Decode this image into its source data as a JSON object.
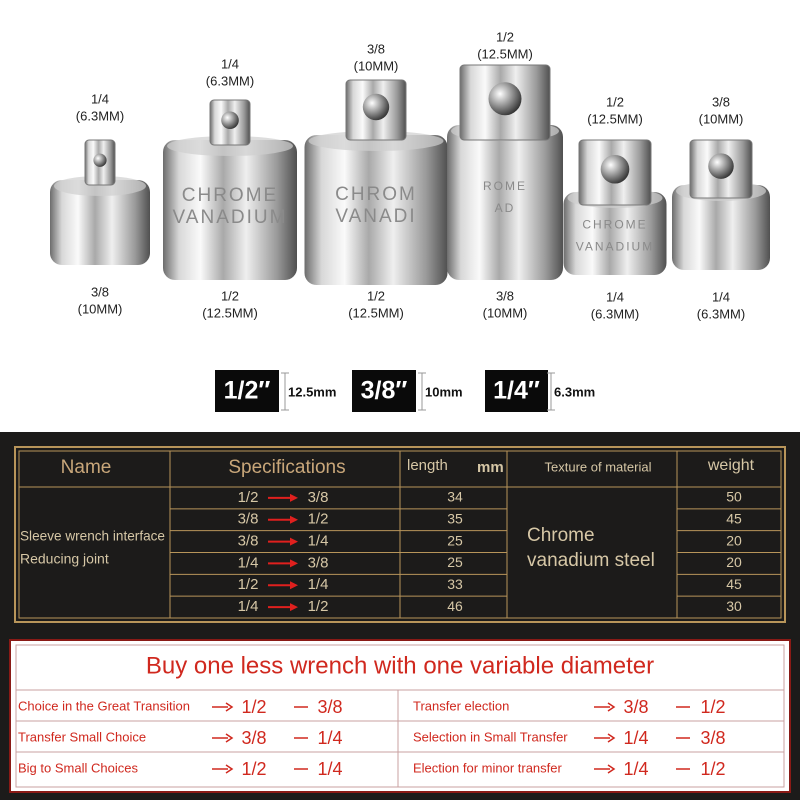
{
  "adapters": [
    {
      "top": [
        "1/4",
        "(6.3MM)"
      ],
      "bottom": [
        "3/8",
        "(10MM)"
      ],
      "engraving": []
    },
    {
      "top": [
        "1/4",
        "(6.3MM)"
      ],
      "bottom": [
        "1/2",
        "(12.5MM)"
      ],
      "engraving": [
        "CHROME",
        "VANADIUM"
      ]
    },
    {
      "top": [
        "3/8",
        "(10MM)"
      ],
      "bottom": [
        "1/2",
        "(12.5MM)"
      ],
      "engraving": [
        "CHROM",
        "VANADI"
      ]
    },
    {
      "top": [
        "1/2",
        "(12.5MM)"
      ],
      "bottom": [
        "3/8",
        "(10MM)"
      ],
      "engraving": [
        "ROME",
        "AD"
      ]
    },
    {
      "top": [
        "1/2",
        "(12.5MM)"
      ],
      "bottom": [
        "1/4",
        "(6.3MM)"
      ],
      "engraving": [
        "CHROME",
        "VANADIUM"
      ]
    },
    {
      "top": [
        "3/8",
        "(10MM)"
      ],
      "bottom": [
        "1/4",
        "(6.3MM)"
      ],
      "engraving": []
    }
  ],
  "sizes": [
    {
      "label": "1/2″",
      "mm": "12.5mm"
    },
    {
      "label": "3/8″",
      "mm": "10mm"
    },
    {
      "label": "1/4″",
      "mm": "6.3mm"
    }
  ],
  "spec_table": {
    "headers": {
      "name": "Name",
      "spec": "Specifications",
      "length": "length",
      "length_unit": "mm",
      "material": "Texture of material",
      "weight": "weight"
    },
    "name": [
      "Sleeve wrench interface",
      "Reducing joint"
    ],
    "material": [
      "Chrome",
      "vanadium steel"
    ],
    "rows": [
      {
        "from": "1/2",
        "to": "3/8",
        "length": 34,
        "weight": 50
      },
      {
        "from": "3/8",
        "to": "1/2",
        "length": 35,
        "weight": 45
      },
      {
        "from": "3/8",
        "to": "1/4",
        "length": 25,
        "weight": 20
      },
      {
        "from": "1/4",
        "to": "3/8",
        "length": 25,
        "weight": 20
      },
      {
        "from": "1/2",
        "to": "1/4",
        "length": 33,
        "weight": 45
      },
      {
        "from": "1/4",
        "to": "1/2",
        "length": 46,
        "weight": 30
      }
    ]
  },
  "promo": {
    "title": "Buy one less wrench with one variable diameter",
    "left": [
      {
        "label": "Choice in the Great Transition",
        "from": "1/2",
        "to": "3/8"
      },
      {
        "label": "Transfer Small Choice",
        "from": "3/8",
        "to": "1/4"
      },
      {
        "label": "Big to Small Choices",
        "from": "1/2",
        "to": "1/4"
      }
    ],
    "right": [
      {
        "label": "Transfer election",
        "from": "3/8",
        "to": "1/2"
      },
      {
        "label": "Selection in Small Transfer",
        "from": "1/4",
        "to": "3/8"
      },
      {
        "label": "Election for minor transfer",
        "from": "1/4",
        "to": "1/2"
      }
    ]
  }
}
